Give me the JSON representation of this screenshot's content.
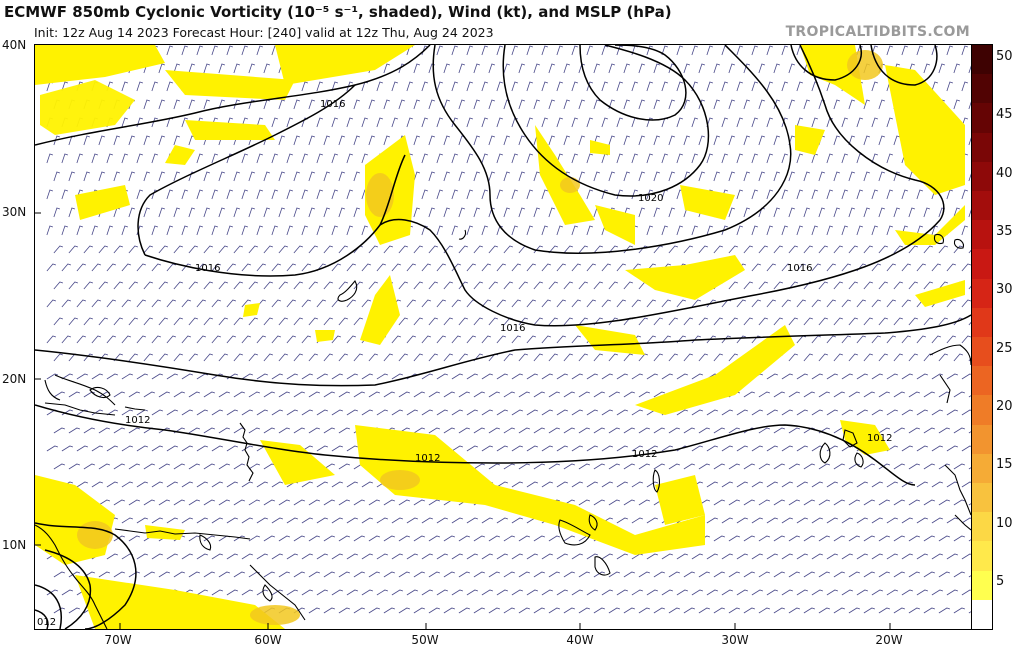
{
  "header": {
    "title": "ECMWF 850mb Cyclonic Vorticity (10⁻⁵ s⁻¹, shaded), Wind (kt), and MSLP (hPa)",
    "subtitle": "Init: 12z Aug 14 2023   Forecast Hour: [240]   valid at 12z Thu, Aug 24 2023",
    "watermark": "TROPICALTIDBITS.COM"
  },
  "map": {
    "lat_labels": [
      "40N",
      "30N",
      "20N",
      "10N"
    ],
    "lon_labels": [
      "70W",
      "60W",
      "50W",
      "40W",
      "30W",
      "20W"
    ],
    "isobar_labels": [
      "1016",
      "1020",
      "1016",
      "1016",
      "1016",
      "1012",
      "1012",
      "1012",
      "1012",
      "012"
    ],
    "colors": {
      "land": "#000000",
      "isobars": "#000000",
      "wind_barbs": "#4a4a8a",
      "vorticity_shade_light": "#fff200",
      "vorticity_shade_mid": "#f2c81e"
    }
  },
  "colorbar": {
    "labels": [
      "5",
      "10",
      "15",
      "20",
      "25",
      "30",
      "35",
      "40",
      "45",
      "50"
    ],
    "colors": [
      "#ffffff",
      "#ffff4f",
      "#ffe94b",
      "#fcd845",
      "#f8c23e",
      "#f5ab36",
      "#f2942f",
      "#ef7c27",
      "#ec6522",
      "#e74e1d",
      "#e03819",
      "#d62516",
      "#c91813",
      "#b8120f",
      "#a30d0c",
      "#8e0909",
      "#7a0606",
      "#650404",
      "#510303",
      "#3e0202"
    ]
  }
}
